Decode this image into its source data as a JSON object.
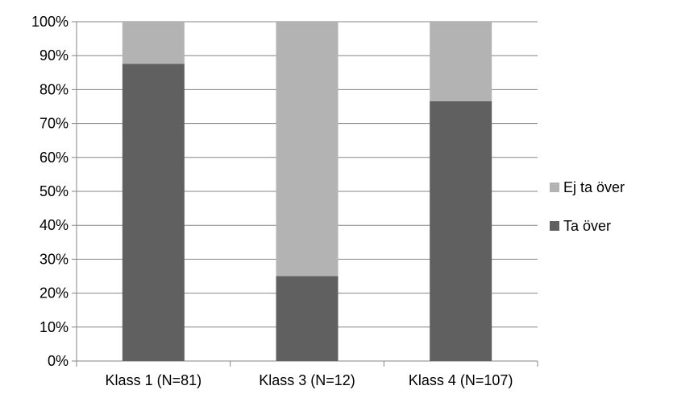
{
  "chart_data": {
    "type": "bar",
    "stacked": true,
    "percent_stacked": true,
    "categories": [
      "Klass 1 (N=81)",
      "Klass 3 (N=12)",
      "Klass 4 (N=107)"
    ],
    "series": [
      {
        "name": "Ta över",
        "values": [
          87.6,
          25.0,
          76.6
        ],
        "color": "#606060"
      },
      {
        "name": "Ej ta över",
        "values": [
          12.4,
          75.0,
          23.4
        ],
        "color": "#b3b3b3"
      }
    ],
    "ylim": [
      0,
      100
    ],
    "yticks": [
      "0%",
      "10%",
      "20%",
      "30%",
      "40%",
      "50%",
      "60%",
      "70%",
      "80%",
      "90%",
      "100%"
    ],
    "grid": true,
    "legend_position": "right",
    "legend_order": [
      "Ej ta över",
      "Ta över"
    ]
  }
}
